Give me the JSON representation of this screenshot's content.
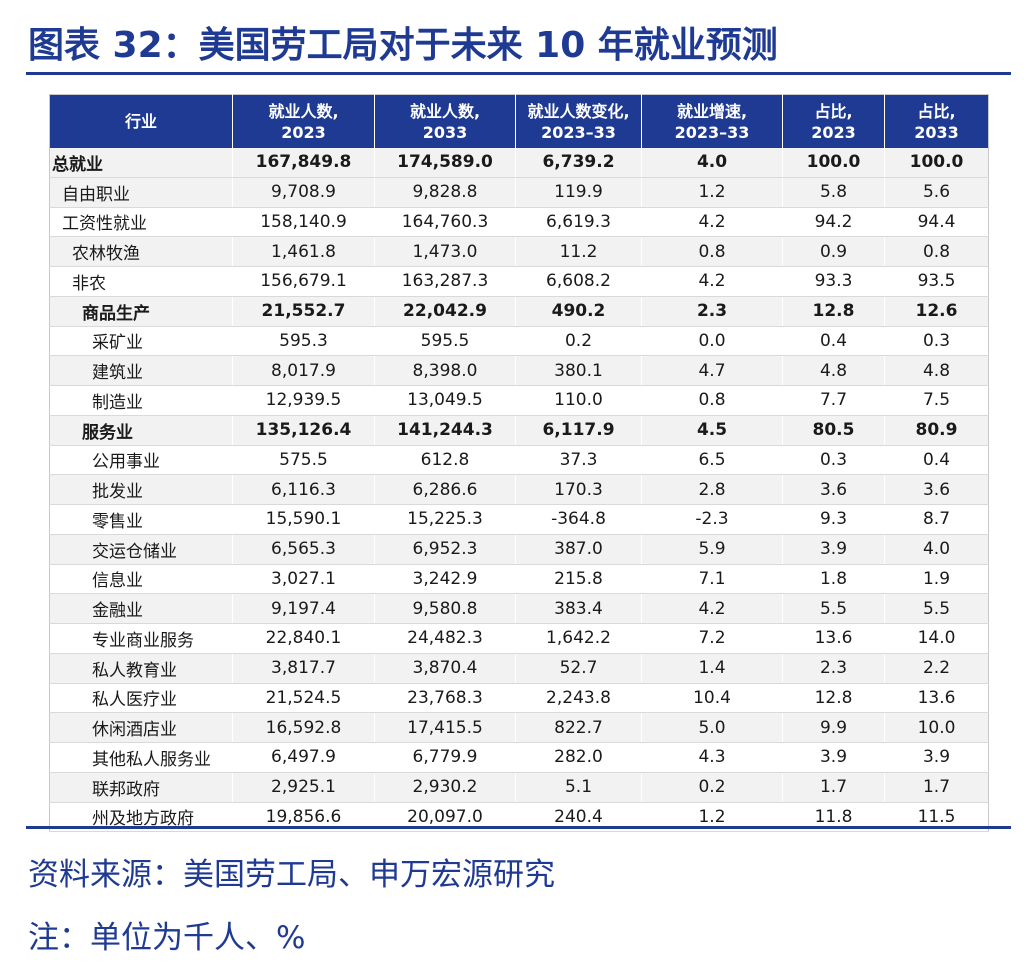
{
  "title": "图表 32：美国劳工局对于未来 10 年就业预测",
  "table": {
    "headers": [
      "行业",
      "就业人数,\n2023",
      "就业人数,\n2033",
      "就业人数变化,\n2023–33",
      "就业增速,\n2023–33",
      "占比,\n2023",
      "占比,\n2033"
    ],
    "rows": [
      {
        "name": "总就业",
        "level": 0,
        "bold": true,
        "values": [
          "167,849.8",
          "174,589.0",
          "6,739.2",
          "4.0",
          "100.0",
          "100.0"
        ]
      },
      {
        "name": "自由职业",
        "level": 1,
        "bold": false,
        "values": [
          "9,708.9",
          "9,828.8",
          "119.9",
          "1.2",
          "5.8",
          "5.6"
        ]
      },
      {
        "name": "工资性就业",
        "level": 1,
        "bold": false,
        "values": [
          "158,140.9",
          "164,760.3",
          "6,619.3",
          "4.2",
          "94.2",
          "94.4"
        ]
      },
      {
        "name": "农林牧渔",
        "level": 2,
        "bold": false,
        "values": [
          "1,461.8",
          "1,473.0",
          "11.2",
          "0.8",
          "0.9",
          "0.8"
        ]
      },
      {
        "name": "非农",
        "level": 2,
        "bold": false,
        "values": [
          "156,679.1",
          "163,287.3",
          "6,608.2",
          "4.2",
          "93.3",
          "93.5"
        ]
      },
      {
        "name": "商品生产",
        "level": 3,
        "bold": true,
        "values": [
          "21,552.7",
          "22,042.9",
          "490.2",
          "2.3",
          "12.8",
          "12.6"
        ]
      },
      {
        "name": "采矿业",
        "level": 4,
        "bold": false,
        "values": [
          "595.3",
          "595.5",
          "0.2",
          "0.0",
          "0.4",
          "0.3"
        ]
      },
      {
        "name": "建筑业",
        "level": 4,
        "bold": false,
        "values": [
          "8,017.9",
          "8,398.0",
          "380.1",
          "4.7",
          "4.8",
          "4.8"
        ]
      },
      {
        "name": "制造业",
        "level": 4,
        "bold": false,
        "values": [
          "12,939.5",
          "13,049.5",
          "110.0",
          "0.8",
          "7.7",
          "7.5"
        ]
      },
      {
        "name": "服务业",
        "level": 3,
        "bold": true,
        "values": [
          "135,126.4",
          "141,244.3",
          "6,117.9",
          "4.5",
          "80.5",
          "80.9"
        ]
      },
      {
        "name": "公用事业",
        "level": 4,
        "bold": false,
        "values": [
          "575.5",
          "612.8",
          "37.3",
          "6.5",
          "0.3",
          "0.4"
        ]
      },
      {
        "name": "批发业",
        "level": 4,
        "bold": false,
        "values": [
          "6,116.3",
          "6,286.6",
          "170.3",
          "2.8",
          "3.6",
          "3.6"
        ]
      },
      {
        "name": "零售业",
        "level": 4,
        "bold": false,
        "values": [
          "15,590.1",
          "15,225.3",
          "-364.8",
          "-2.3",
          "9.3",
          "8.7"
        ]
      },
      {
        "name": "交运仓储业",
        "level": 4,
        "bold": false,
        "values": [
          "6,565.3",
          "6,952.3",
          "387.0",
          "5.9",
          "3.9",
          "4.0"
        ]
      },
      {
        "name": "信息业",
        "level": 4,
        "bold": false,
        "values": [
          "3,027.1",
          "3,242.9",
          "215.8",
          "7.1",
          "1.8",
          "1.9"
        ]
      },
      {
        "name": "金融业",
        "level": 4,
        "bold": false,
        "values": [
          "9,197.4",
          "9,580.8",
          "383.4",
          "4.2",
          "5.5",
          "5.5"
        ]
      },
      {
        "name": "专业商业服务",
        "level": 4,
        "bold": false,
        "values": [
          "22,840.1",
          "24,482.3",
          "1,642.2",
          "7.2",
          "13.6",
          "14.0"
        ]
      },
      {
        "name": "私人教育业",
        "level": 4,
        "bold": false,
        "values": [
          "3,817.7",
          "3,870.4",
          "52.7",
          "1.4",
          "2.3",
          "2.2"
        ]
      },
      {
        "name": "私人医疗业",
        "level": 4,
        "bold": false,
        "values": [
          "21,524.5",
          "23,768.3",
          "2,243.8",
          "10.4",
          "12.8",
          "13.6"
        ]
      },
      {
        "name": "休闲酒店业",
        "level": 4,
        "bold": false,
        "values": [
          "16,592.8",
          "17,415.5",
          "822.7",
          "5.0",
          "9.9",
          "10.0"
        ]
      },
      {
        "name": "其他私人服务业",
        "level": 4,
        "bold": false,
        "values": [
          "6,497.9",
          "6,779.9",
          "282.0",
          "4.3",
          "3.9",
          "3.9"
        ]
      },
      {
        "name": "联邦政府",
        "level": 4,
        "bold": false,
        "values": [
          "2,925.1",
          "2,930.2",
          "5.1",
          "0.2",
          "1.7",
          "1.7"
        ]
      },
      {
        "name": "州及地方政府",
        "level": 4,
        "bold": false,
        "values": [
          "19,856.6",
          "20,097.0",
          "240.4",
          "1.2",
          "11.8",
          "11.5"
        ]
      }
    ]
  },
  "source": "资料来源：美国劳工局、申万宏源研究",
  "note": "注：单位为千人、%",
  "colors": {
    "accent": "#1f3a93",
    "stripe": "#f2f2f2"
  }
}
